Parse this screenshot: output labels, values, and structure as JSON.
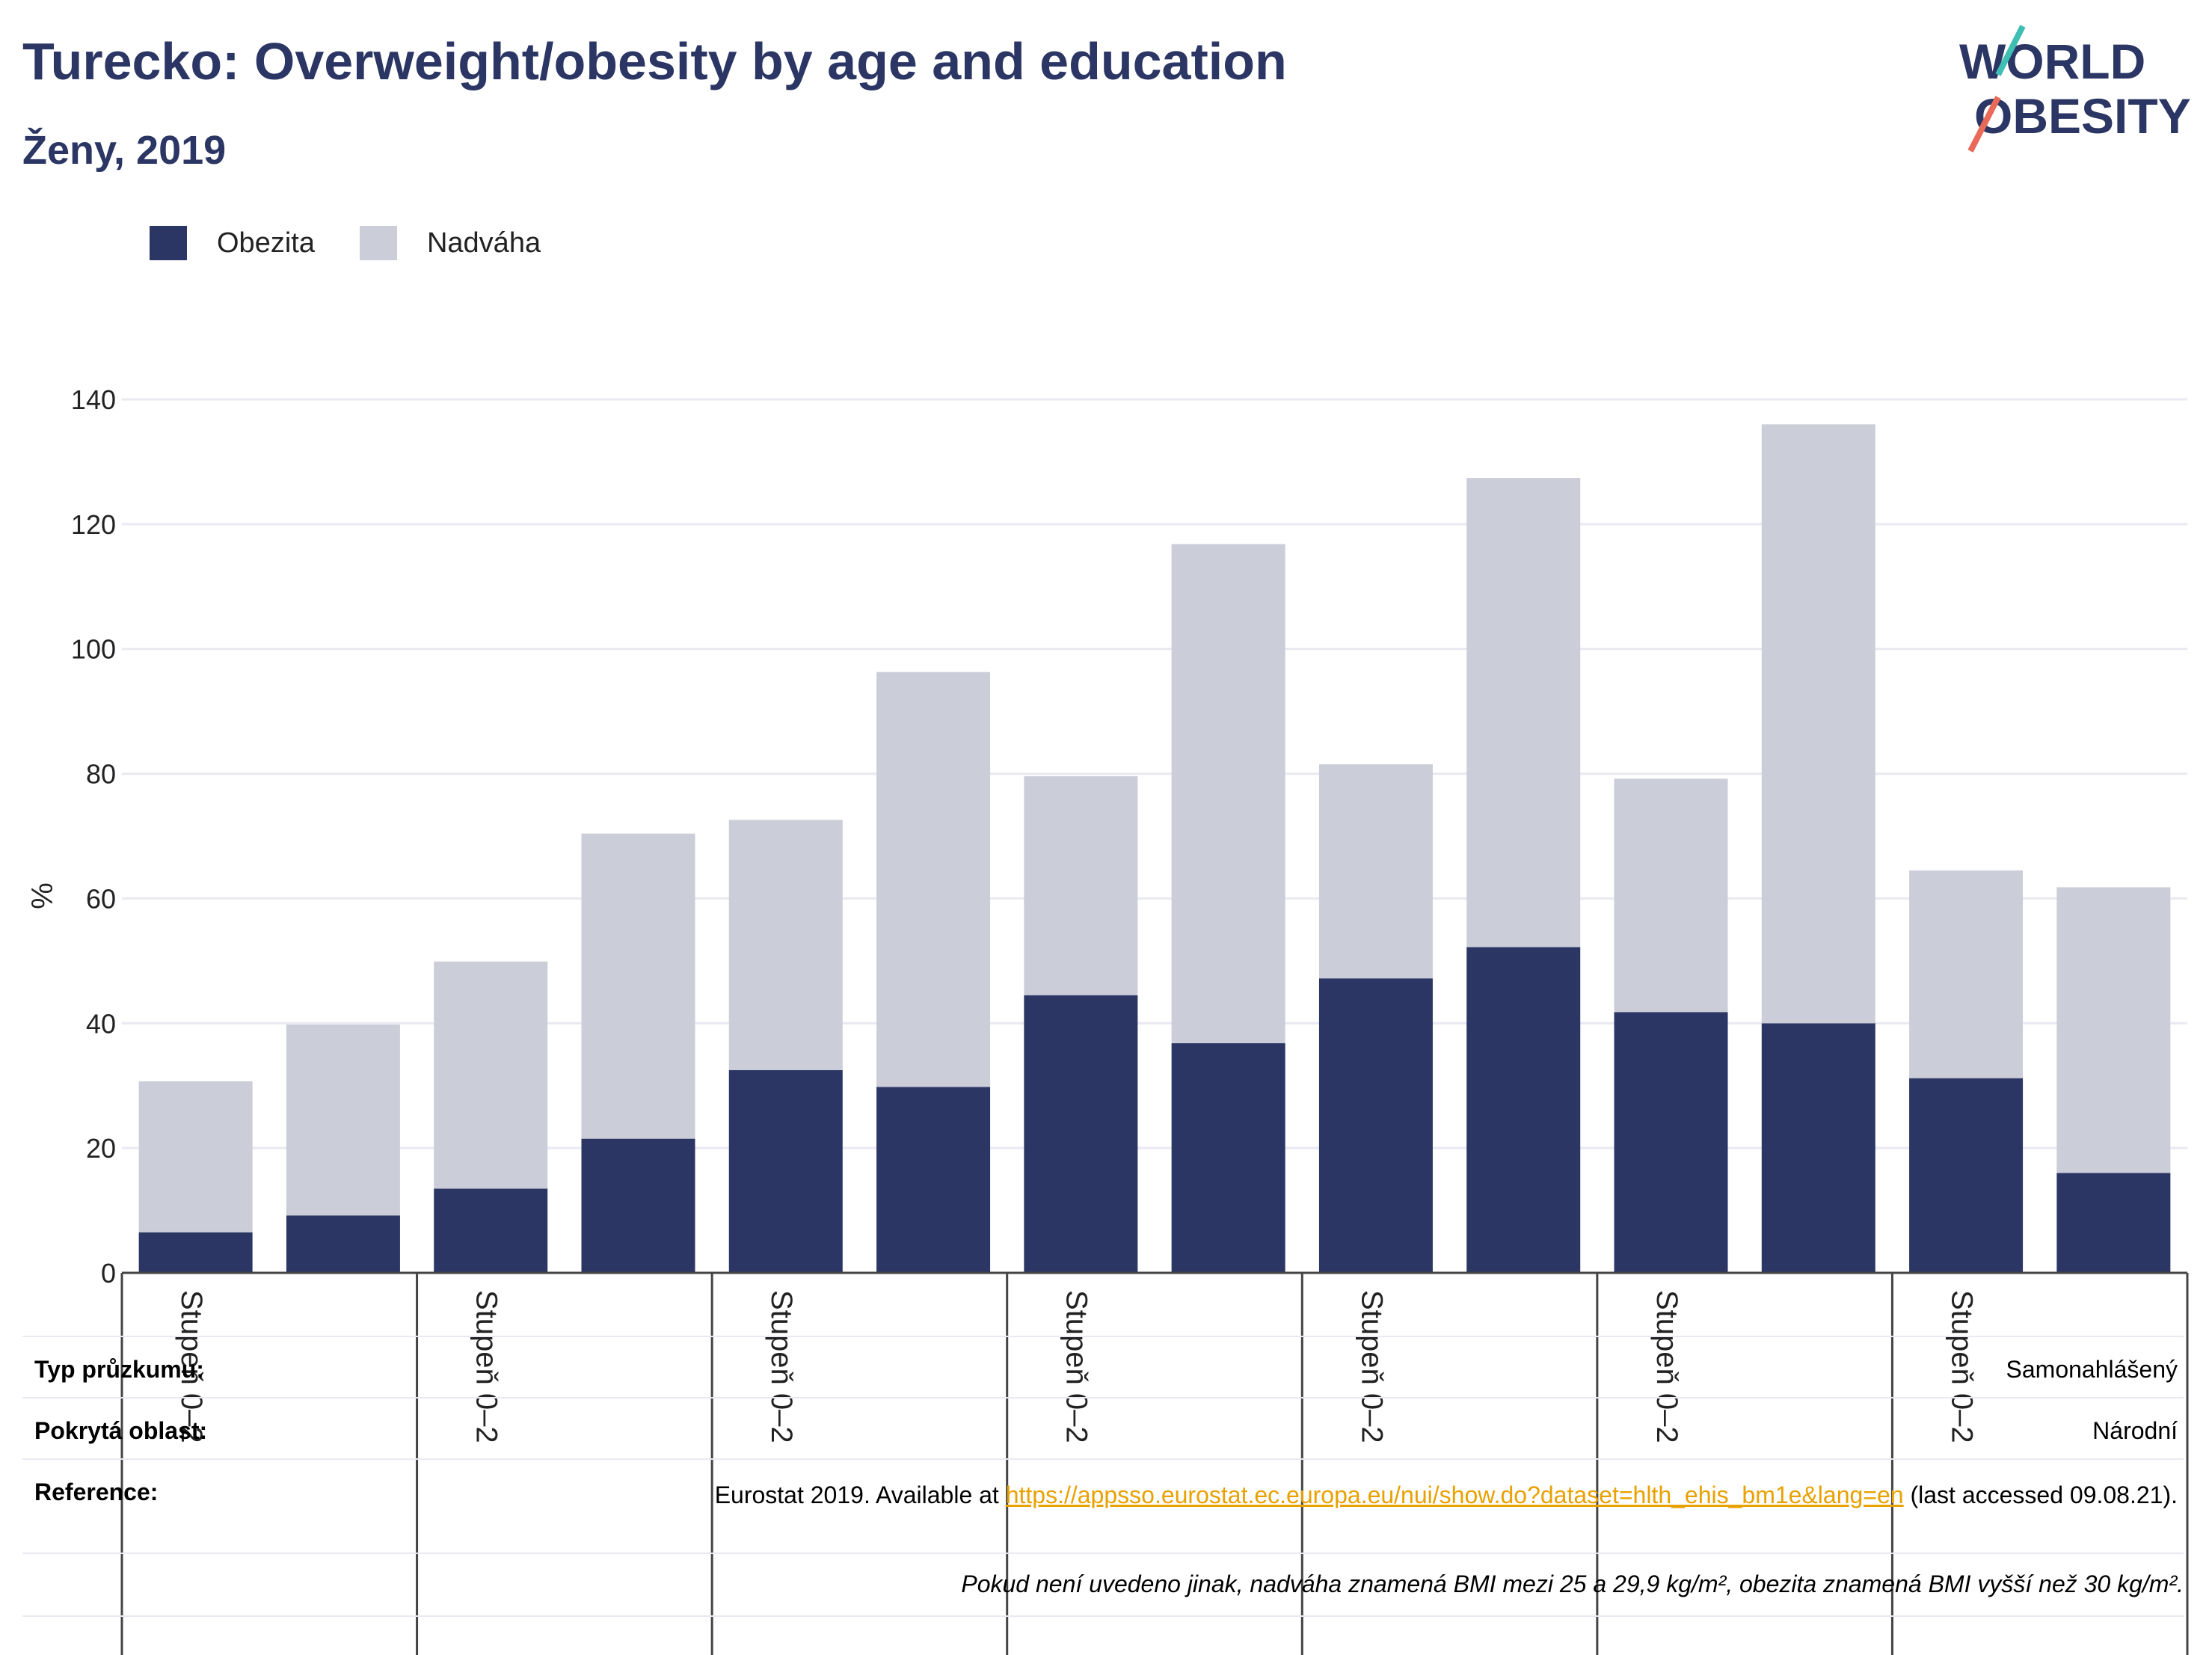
{
  "title": "Turecko: Overweight/obesity by age and education",
  "subtitle": "Ženy, 2019",
  "logo": {
    "line1": "WORLD",
    "line2": "OBESITY"
  },
  "legend": [
    {
      "label": "Obezita",
      "color": "#2b3664"
    },
    {
      "label": "Nadváha",
      "color": "#cbcdd8"
    }
  ],
  "chart_data": {
    "type": "bar",
    "stacked": true,
    "ylabel": "%",
    "ylim": [
      0,
      140
    ],
    "yticks": [
      0,
      20,
      40,
      60,
      80,
      100,
      120,
      140
    ],
    "grid": true,
    "legend_position": "top-left",
    "group_labels": [
      "Stupeň 0–2",
      "Stupeň 0–2",
      "Stupeň 0–2",
      "Stupeň 0–2",
      "Stupeň 0–2",
      "Stupeň 0–2",
      "Stupeň 0–2"
    ],
    "series": [
      {
        "name": "Obezita",
        "color": "#2b3664",
        "values": [
          6.5,
          9.2,
          13.5,
          21.5,
          32.5,
          29.8,
          44.5,
          36.8,
          47.2,
          52.2,
          41.8,
          40.0,
          31.2,
          16.0
        ]
      },
      {
        "name": "Nadváha",
        "color": "#cbcdd8",
        "values": [
          24.2,
          30.6,
          36.4,
          48.9,
          40.1,
          66.5,
          35.1,
          80.0,
          34.3,
          75.2,
          37.4,
          96.0,
          33.3,
          45.8
        ]
      }
    ]
  },
  "table": {
    "survey_type_label": "Typ průzkumu:",
    "survey_type_value": "Samonahlášený",
    "area_label": "Pokrytá oblast:",
    "area_value": "Národní",
    "reference_label": "Reference:",
    "reference_prefix": "Eurostat 2019. Available at ",
    "reference_link": "https://appsso.eurostat.ec.europa.eu/nui/show.do?dataset=hlth_ehis_bm1e&lang=en",
    "reference_suffix": " (last accessed 09.08.21).",
    "note": "Pokud není uvedeno jinak, nadváha znamená BMI mezi 25 a 29,9 kg/m², obezita znamená BMI vyšší než 30 kg/m²."
  }
}
